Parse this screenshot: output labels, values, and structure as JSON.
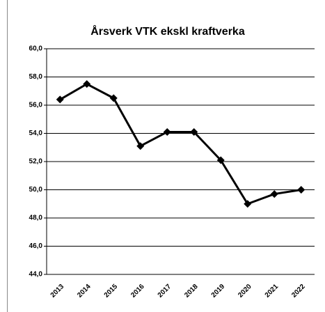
{
  "chart_data": {
    "type": "line",
    "title": "Årsverk VTK ekskl kraftverka",
    "categories": [
      "2013",
      "2014",
      "2015",
      "2016",
      "2017",
      "2018",
      "2019",
      "2020",
      "2021",
      "2022"
    ],
    "series": [
      {
        "name": "Årsverk",
        "color": "#000000",
        "values": [
          56.4,
          57.5,
          56.5,
          53.1,
          54.1,
          54.1,
          52.1,
          49.0,
          49.7,
          50.0
        ]
      }
    ],
    "ylim": [
      44,
      60
    ],
    "yticks": [
      {
        "value": 44,
        "label": "44,0"
      },
      {
        "value": 46,
        "label": "46,0"
      },
      {
        "value": 48,
        "label": "48,0"
      },
      {
        "value": 50,
        "label": "50,0"
      },
      {
        "value": 52,
        "label": "52,0"
      },
      {
        "value": 54,
        "label": "54,0"
      },
      {
        "value": 56,
        "label": "56,0"
      },
      {
        "value": 58,
        "label": "58,0"
      },
      {
        "value": 60,
        "label": "60,0"
      }
    ],
    "grid": true
  }
}
